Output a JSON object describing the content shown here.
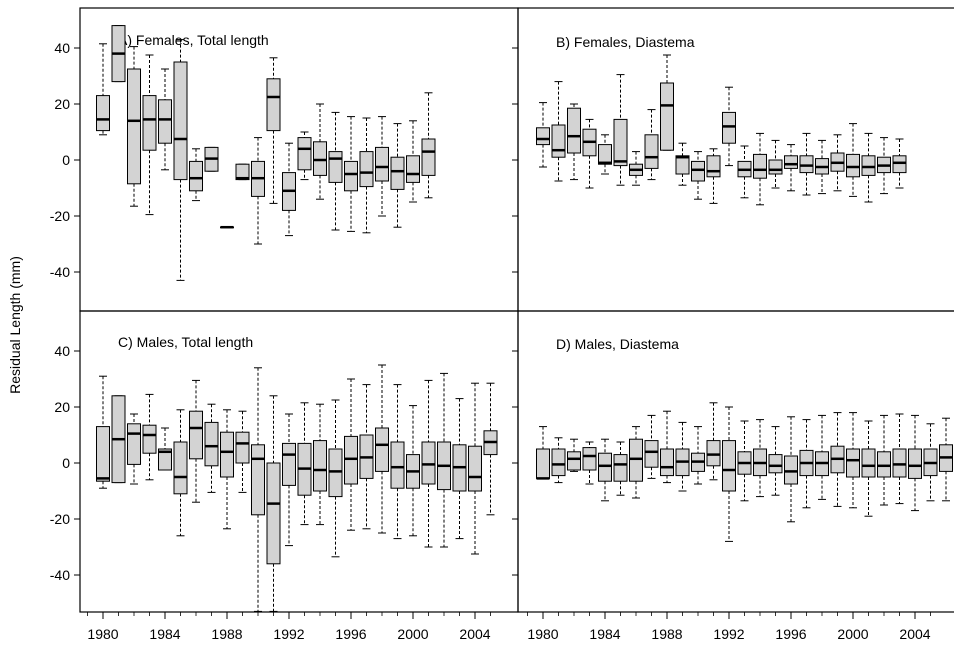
{
  "figure": {
    "ylabel": "Residual Length (mm)"
  },
  "chart_data": [
    {
      "type": "boxplot",
      "title": "A) Females, Total length",
      "x_ticks": [
        1980,
        1984,
        1988,
        1992,
        1996,
        2000,
        2004
      ],
      "y_ticks": [
        -40,
        -20,
        0,
        20,
        40
      ],
      "ylim": [
        -52,
        53
      ],
      "xlim": [
        1979,
        2005.5
      ],
      "boxes": [
        {
          "year": 1980,
          "min": 9,
          "q1": 10.5,
          "median": 14.5,
          "q3": 23,
          "max": 41.5
        },
        {
          "year": 1981,
          "min": 28,
          "q1": 28,
          "median": 38,
          "q3": 48,
          "max": 48
        },
        {
          "year": 1982,
          "min": -16.5,
          "q1": -8.5,
          "median": 14,
          "q3": 32.5,
          "max": 40.5
        },
        {
          "year": 1983,
          "min": -19.5,
          "q1": 3.5,
          "median": 14.5,
          "q3": 23,
          "max": 37.5
        },
        {
          "year": 1984,
          "min": -3.5,
          "q1": 6,
          "median": 14.5,
          "q3": 21.5,
          "max": 32.5
        },
        {
          "year": 1985,
          "min": -43,
          "q1": -7,
          "median": 7.5,
          "q3": 35,
          "max": 43
        },
        {
          "year": 1986,
          "min": -14.5,
          "q1": -11,
          "median": -6.5,
          "q3": -0.5,
          "max": 4
        },
        {
          "year": 1987,
          "min": -4,
          "q1": -4,
          "median": 0.5,
          "q3": 4.5,
          "max": 4.5
        },
        {
          "year": 1988,
          "min": -24,
          "q1": -24,
          "median": -24,
          "q3": -24,
          "max": -24
        },
        {
          "year": 1989,
          "min": -7,
          "q1": -7,
          "median": -6.5,
          "q3": -1.5,
          "max": -1.5
        },
        {
          "year": 1990,
          "min": -30,
          "q1": -13,
          "median": -6.5,
          "q3": -0.5,
          "max": 8
        },
        {
          "year": 1991,
          "min": -15.5,
          "q1": 10.5,
          "median": 22.5,
          "q3": 29,
          "max": 36.5
        },
        {
          "year": 1992,
          "min": -27,
          "q1": -18,
          "median": -11,
          "q3": -4.5,
          "max": 6
        },
        {
          "year": 1993,
          "min": -7,
          "q1": -3.5,
          "median": 4,
          "q3": 8,
          "max": 10
        },
        {
          "year": 1994,
          "min": -14,
          "q1": -5.5,
          "median": 0,
          "q3": 6.5,
          "max": 20
        },
        {
          "year": 1995,
          "min": -25,
          "q1": -8,
          "median": 0.5,
          "q3": 3,
          "max": 17
        },
        {
          "year": 1996,
          "min": -25.5,
          "q1": -11,
          "median": -5,
          "q3": -0.5,
          "max": 15.5
        },
        {
          "year": 1997,
          "min": -26,
          "q1": -9.5,
          "median": -4.5,
          "q3": 3,
          "max": 15
        },
        {
          "year": 1998,
          "min": -20,
          "q1": -7.5,
          "median": -2.5,
          "q3": 4.5,
          "max": 15.5
        },
        {
          "year": 1999,
          "min": -24,
          "q1": -10.5,
          "median": -4,
          "q3": 1,
          "max": 13
        },
        {
          "year": 2000,
          "min": -15,
          "q1": -8,
          "median": -5,
          "q3": 1.5,
          "max": 14
        },
        {
          "year": 2001,
          "min": -13.5,
          "q1": -5.5,
          "median": 3,
          "q3": 7.5,
          "max": 24
        }
      ]
    },
    {
      "type": "boxplot",
      "title": "B) Females, Diastema",
      "x_ticks": [
        1980,
        1984,
        1988,
        1992,
        1996,
        2000,
        2004
      ],
      "ylim": [
        -52,
        53
      ],
      "xlim": [
        1979,
        2005.5
      ],
      "boxes": [
        {
          "year": 1980,
          "min": -2.5,
          "q1": 5.5,
          "median": 7.5,
          "q3": 11.5,
          "max": 20.5
        },
        {
          "year": 1981,
          "min": -7.5,
          "q1": 1,
          "median": 3.5,
          "q3": 12.5,
          "max": 28
        },
        {
          "year": 1982,
          "min": -7,
          "q1": 2.5,
          "median": 8.5,
          "q3": 18.5,
          "max": 20
        },
        {
          "year": 1983,
          "min": -10,
          "q1": 1.5,
          "median": 6.5,
          "q3": 11,
          "max": 14.5
        },
        {
          "year": 1984,
          "min": -5,
          "q1": -1.5,
          "median": -1,
          "q3": 5.5,
          "max": 9
        },
        {
          "year": 1985,
          "min": -9,
          "q1": -2,
          "median": -0.5,
          "q3": 14.5,
          "max": 30.5
        },
        {
          "year": 1986,
          "min": -9,
          "q1": -5.5,
          "median": -3.5,
          "q3": -1.5,
          "max": 3
        },
        {
          "year": 1987,
          "min": -7,
          "q1": -3,
          "median": 1,
          "q3": 9,
          "max": 18
        },
        {
          "year": 1988,
          "min": 3.5,
          "q1": 3.5,
          "median": 19.5,
          "q3": 27.5,
          "max": 37.5
        },
        {
          "year": 1989,
          "min": -9,
          "q1": -5,
          "median": 1,
          "q3": 1.5,
          "max": 6
        },
        {
          "year": 1990,
          "min": -14,
          "q1": -7.5,
          "median": -3.5,
          "q3": -0.5,
          "max": 3
        },
        {
          "year": 1991,
          "min": -15.5,
          "q1": -6,
          "median": -4,
          "q3": 1.5,
          "max": 4
        },
        {
          "year": 1992,
          "min": -2,
          "q1": 6,
          "median": 12,
          "q3": 17,
          "max": 26
        },
        {
          "year": 1993,
          "min": -13.5,
          "q1": -6,
          "median": -3.5,
          "q3": -0.5,
          "max": 5
        },
        {
          "year": 1994,
          "min": -16,
          "q1": -6.5,
          "median": -3.5,
          "q3": 2,
          "max": 9.5
        },
        {
          "year": 1995,
          "min": -10,
          "q1": -5,
          "median": -3.5,
          "q3": 0,
          "max": 7
        },
        {
          "year": 1996,
          "min": -11,
          "q1": -3,
          "median": -1.5,
          "q3": 1.5,
          "max": 5.5
        },
        {
          "year": 1997,
          "min": -12.5,
          "q1": -4.5,
          "median": -2,
          "q3": 1.5,
          "max": 9.5
        },
        {
          "year": 1998,
          "min": -12,
          "q1": -5,
          "median": -2.5,
          "q3": 0.5,
          "max": 7
        },
        {
          "year": 1999,
          "min": -11,
          "q1": -4,
          "median": -1,
          "q3": 2.5,
          "max": 9
        },
        {
          "year": 2000,
          "min": -13,
          "q1": -6,
          "median": -2.5,
          "q3": 2,
          "max": 13
        },
        {
          "year": 2001,
          "min": -15,
          "q1": -5.5,
          "median": -2.5,
          "q3": 1.5,
          "max": 9.5
        },
        {
          "year": 2002,
          "min": -12,
          "q1": -4.5,
          "median": -2,
          "q3": 1,
          "max": 8
        },
        {
          "year": 2003,
          "min": -10,
          "q1": -4.5,
          "median": -1,
          "q3": 1.5,
          "max": 7.5
        }
      ]
    },
    {
      "type": "boxplot",
      "title": "C) Males, Total length",
      "x_ticks": [
        1980,
        1984,
        1988,
        1992,
        1996,
        2000,
        2004
      ],
      "y_ticks": [
        -40,
        -20,
        0,
        20,
        40
      ],
      "ylim": [
        -53,
        52
      ],
      "xlim": [
        1979,
        2005.5
      ],
      "boxes": [
        {
          "year": 1980,
          "min": -9,
          "q1": -6.5,
          "median": -5.5,
          "q3": 13,
          "max": 31
        },
        {
          "year": 1981,
          "min": -7,
          "q1": -7,
          "median": 8.5,
          "q3": 24,
          "max": 24
        },
        {
          "year": 1982,
          "min": -7.5,
          "q1": -0.5,
          "median": 10.5,
          "q3": 14,
          "max": 17.5
        },
        {
          "year": 1983,
          "min": -6,
          "q1": 3.5,
          "median": 10,
          "q3": 13.5,
          "max": 24.5
        },
        {
          "year": 1984,
          "min": -2.5,
          "q1": -2.5,
          "median": 4,
          "q3": 5,
          "max": 12.5
        },
        {
          "year": 1985,
          "min": -26,
          "q1": -11,
          "median": -5,
          "q3": 7.5,
          "max": 19
        },
        {
          "year": 1986,
          "min": -14,
          "q1": 1.5,
          "median": 12.5,
          "q3": 18.5,
          "max": 29.5
        },
        {
          "year": 1987,
          "min": -10.5,
          "q1": -1,
          "median": 6,
          "q3": 14.5,
          "max": 21
        },
        {
          "year": 1988,
          "min": -23.5,
          "q1": -5,
          "median": 4,
          "q3": 11,
          "max": 19
        },
        {
          "year": 1989,
          "min": -10.5,
          "q1": 0,
          "median": 7,
          "q3": 11,
          "max": 18.5
        },
        {
          "year": 1990,
          "min": -53,
          "q1": -18.5,
          "median": 1.5,
          "q3": 6.5,
          "max": 34
        },
        {
          "year": 1991,
          "min": -53,
          "q1": -36,
          "median": -14.5,
          "q3": 0,
          "max": 24
        },
        {
          "year": 1992,
          "min": -29.5,
          "q1": -8,
          "median": 3,
          "q3": 7,
          "max": 17.5
        },
        {
          "year": 1993,
          "min": -22,
          "q1": -11.5,
          "median": -2,
          "q3": 7,
          "max": 21.5
        },
        {
          "year": 1994,
          "min": -22,
          "q1": -10,
          "median": -2.5,
          "q3": 8,
          "max": 21
        },
        {
          "year": 1995,
          "min": -33.5,
          "q1": -12,
          "median": -3,
          "q3": 5,
          "max": 22.5
        },
        {
          "year": 1996,
          "min": -24,
          "q1": -7.5,
          "median": 1.5,
          "q3": 9.5,
          "max": 30
        },
        {
          "year": 1997,
          "min": -23.5,
          "q1": -5.5,
          "median": 2,
          "q3": 10,
          "max": 28
        },
        {
          "year": 1998,
          "min": -25,
          "q1": -3,
          "median": 6.5,
          "q3": 12.5,
          "max": 35
        },
        {
          "year": 1999,
          "min": -27,
          "q1": -9,
          "median": -1.5,
          "q3": 7.5,
          "max": 28
        },
        {
          "year": 2000,
          "min": -26,
          "q1": -9,
          "median": -3,
          "q3": 3,
          "max": 20.5
        },
        {
          "year": 2001,
          "min": -30,
          "q1": -7.5,
          "median": -0.5,
          "q3": 7.5,
          "max": 29.5
        },
        {
          "year": 2002,
          "min": -30,
          "q1": -9.5,
          "median": -1,
          "q3": 7.5,
          "max": 32
        },
        {
          "year": 2003,
          "min": -27,
          "q1": -10,
          "median": -1.5,
          "q3": 6.5,
          "max": 23
        },
        {
          "year": 2004,
          "min": -32.5,
          "q1": -10,
          "median": -5,
          "q3": 6,
          "max": 28.5
        },
        {
          "year": 2005,
          "min": -18.5,
          "q1": 3,
          "median": 7.5,
          "q3": 11.5,
          "max": 28.5
        }
      ]
    },
    {
      "type": "boxplot",
      "title": "D) Males, Diastema",
      "x_ticks": [
        1980,
        1984,
        1988,
        1992,
        1996,
        2000,
        2004
      ],
      "ylim": [
        -53,
        52
      ],
      "xlim": [
        1979,
        2005.5
      ],
      "boxes": [
        {
          "year": 1980,
          "min": -5.5,
          "q1": -5.5,
          "median": -5.5,
          "q3": 5,
          "max": 13
        },
        {
          "year": 1981,
          "min": -7,
          "q1": -4.5,
          "median": -0.5,
          "q3": 5,
          "max": 9
        },
        {
          "year": 1982,
          "min": -3,
          "q1": -2.5,
          "median": 1.5,
          "q3": 4,
          "max": 8.5
        },
        {
          "year": 1983,
          "min": -7.5,
          "q1": -2.5,
          "median": 2.5,
          "q3": 5.5,
          "max": 7.5
        },
        {
          "year": 1984,
          "min": -13.5,
          "q1": -6.5,
          "median": -1,
          "q3": 3.5,
          "max": 8.5
        },
        {
          "year": 1985,
          "min": -11.5,
          "q1": -6.5,
          "median": -0.5,
          "q3": 3,
          "max": 7.5
        },
        {
          "year": 1986,
          "min": -12.5,
          "q1": -6.5,
          "median": 1.5,
          "q3": 8.5,
          "max": 13
        },
        {
          "year": 1987,
          "min": -5.5,
          "q1": -1.5,
          "median": 4,
          "q3": 8,
          "max": 17
        },
        {
          "year": 1988,
          "min": -7,
          "q1": -4.5,
          "median": -1.5,
          "q3": 5,
          "max": 18.5
        },
        {
          "year": 1989,
          "min": -10,
          "q1": -4.5,
          "median": 0.5,
          "q3": 5,
          "max": 14.5
        },
        {
          "year": 1990,
          "min": -7.5,
          "q1": -3,
          "median": 0.5,
          "q3": 3.5,
          "max": 13
        },
        {
          "year": 1991,
          "min": -6,
          "q1": -1,
          "median": 3,
          "q3": 8,
          "max": 21.5
        },
        {
          "year": 1992,
          "min": -28,
          "q1": -10,
          "median": -2.5,
          "q3": 8,
          "max": 20
        },
        {
          "year": 1993,
          "min": -13.5,
          "q1": -4,
          "median": 0,
          "q3": 4,
          "max": 15
        },
        {
          "year": 1994,
          "min": -12,
          "q1": -4.5,
          "median": 0,
          "q3": 5,
          "max": 15.5
        },
        {
          "year": 1995,
          "min": -11.5,
          "q1": -3.5,
          "median": -1,
          "q3": 3,
          "max": 13
        },
        {
          "year": 1996,
          "min": -21,
          "q1": -7.5,
          "median": -3,
          "q3": 2.5,
          "max": 16.5
        },
        {
          "year": 1997,
          "min": -16,
          "q1": -4.5,
          "median": 0,
          "q3": 4.5,
          "max": 15.5
        },
        {
          "year": 1998,
          "min": -13,
          "q1": -4.5,
          "median": 0,
          "q3": 4,
          "max": 17
        },
        {
          "year": 1999,
          "min": -15.5,
          "q1": -3.5,
          "median": 1.5,
          "q3": 6,
          "max": 18
        },
        {
          "year": 2000,
          "min": -16,
          "q1": -5,
          "median": 1,
          "q3": 5,
          "max": 18
        },
        {
          "year": 2001,
          "min": -19,
          "q1": -5,
          "median": -1,
          "q3": 5,
          "max": 15
        },
        {
          "year": 2002,
          "min": -15,
          "q1": -5,
          "median": -1,
          "q3": 4,
          "max": 17
        },
        {
          "year": 2003,
          "min": -14.5,
          "q1": -5,
          "median": -0.5,
          "q3": 5,
          "max": 17.5
        },
        {
          "year": 2004,
          "min": -17,
          "q1": -5.5,
          "median": -1,
          "q3": 5,
          "max": 17
        },
        {
          "year": 2005,
          "min": -13.5,
          "q1": -4.5,
          "median": 0,
          "q3": 5,
          "max": 14
        },
        {
          "year": 2006,
          "min": -13.5,
          "q1": -3,
          "median": 2,
          "q3": 6.5,
          "max": 16
        }
      ]
    }
  ],
  "colors": {
    "box_fill": "#d3d3d3",
    "stroke": "#000000",
    "background": "#ffffff"
  }
}
